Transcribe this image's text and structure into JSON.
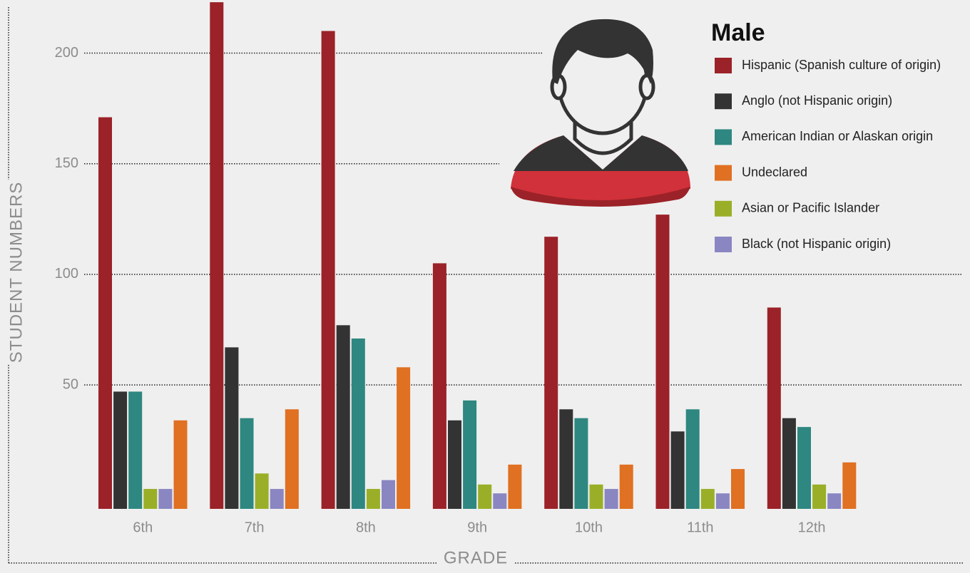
{
  "chart_data": {
    "type": "bar",
    "legend_title": "Male",
    "y_label": "STUDENT NUMBERS",
    "x_label": "GRADE",
    "categories": [
      "6th",
      "7th",
      "8th",
      "9th",
      "10th",
      "11th",
      "12th"
    ],
    "series": [
      {
        "name": "Hispanic (Spanish culture of origin)",
        "color": "#9b2228",
        "values": [
          171,
          223,
          210,
          105,
          117,
          127,
          85
        ]
      },
      {
        "name": "Anglo (not Hispanic origin)",
        "color": "#333333",
        "values": [
          47,
          67,
          77,
          34,
          39,
          29,
          35
        ]
      },
      {
        "name": "American Indian or Alaskan origin",
        "color": "#2e8780",
        "values": [
          47,
          35,
          71,
          43,
          35,
          39,
          31
        ]
      },
      {
        "name": "Undeclared",
        "color": "#e07022",
        "values": [
          34,
          39,
          58,
          14,
          14,
          12,
          15
        ]
      },
      {
        "name": "Asian or Pacific Islander",
        "color": "#9aaf27",
        "values": [
          3,
          10,
          3,
          5,
          5,
          3,
          5
        ]
      },
      {
        "name": "Black (not Hispanic origin)",
        "color": "#8a86c2",
        "values": [
          3,
          3,
          7,
          1,
          3,
          1,
          1
        ]
      }
    ],
    "ylim": [
      -6,
      224
    ],
    "yticks": [
      50,
      100,
      150,
      200
    ],
    "grid": true,
    "legend": "top-right"
  }
}
